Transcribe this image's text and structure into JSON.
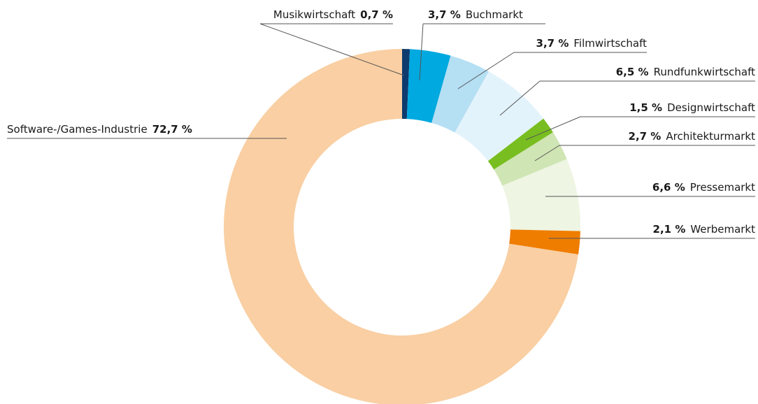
{
  "chart_data": {
    "type": "donut",
    "categories": [
      "Musikwirtschaft",
      "Buchmarkt",
      "Filmwirtschaft",
      "Rundfunkwirtschaft",
      "Designwirtschaft",
      "Architekturmarkt",
      "Pressemarkt",
      "Werbemarkt",
      "Software-/Games-Industrie"
    ],
    "values": [
      0.7,
      3.7,
      3.7,
      6.5,
      1.5,
      2.7,
      6.6,
      2.1,
      72.7
    ],
    "value_labels": [
      "0,7 %",
      "3,7 %",
      "3,7 %",
      "6,5 %",
      "1,5 %",
      "2,7 %",
      "6,6 %",
      "2,1 %",
      "72,7 %"
    ],
    "colors": [
      "#0d3b6e",
      "#00a9e0",
      "#b5dff3",
      "#e3f3fb",
      "#78be20",
      "#d0e5b4",
      "#eef5e3",
      "#ef7d00",
      "#f9cfa3"
    ]
  }
}
